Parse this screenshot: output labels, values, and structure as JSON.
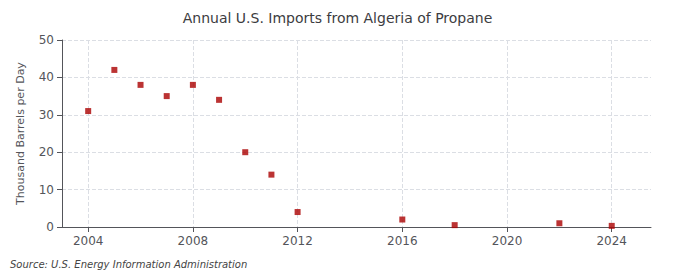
{
  "chart_data": {
    "type": "scatter",
    "title": "Annual U.S. Imports from Algeria of Propane",
    "ylabel": "Thousand Barrels per Day",
    "source": "Source: U.S. Energy Information Administration",
    "x": [
      2004,
      2005,
      2006,
      2007,
      2008,
      2009,
      2010,
      2011,
      2012,
      2016,
      2018,
      2022,
      2024
    ],
    "values": [
      31,
      42,
      38,
      35,
      38,
      34,
      20,
      14,
      4,
      2,
      0.5,
      1,
      0.3
    ],
    "color": "#aa0000",
    "marker": "square",
    "xlim": [
      2003,
      2025.5
    ],
    "xticks": [
      2004,
      2008,
      2012,
      2016,
      2020,
      2024
    ],
    "ylim": [
      0,
      50
    ],
    "yticks": [
      0,
      10,
      20,
      30,
      40,
      50
    ],
    "grid": true
  }
}
